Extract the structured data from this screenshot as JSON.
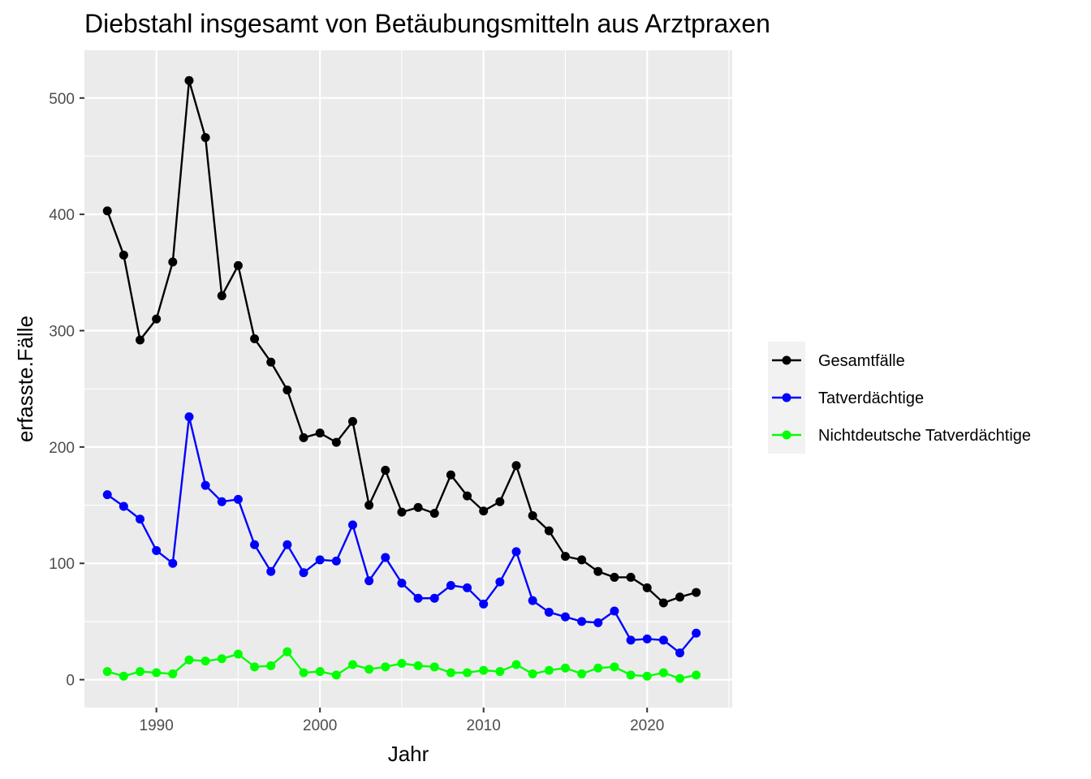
{
  "chart_data": {
    "type": "line",
    "title": "Diebstahl insgesamt von Betäubungsmitteln aus Arztpraxen",
    "xlabel": "Jahr",
    "ylabel": "erfasste.Fälle",
    "xlim": [
      1985.6,
      2025.2
    ],
    "ylim": [
      -24,
      541
    ],
    "x_ticks": [
      1990,
      2000,
      2010,
      2020
    ],
    "x_tick_labels": [
      "1990",
      "2000",
      "2010",
      "2020"
    ],
    "y_ticks": [
      0,
      100,
      200,
      300,
      400,
      500
    ],
    "y_tick_labels": [
      "0",
      "100",
      "200",
      "300",
      "400",
      "500"
    ],
    "grid": true,
    "legend_position": "right",
    "x": [
      1987,
      1988,
      1989,
      1990,
      1991,
      1992,
      1993,
      1994,
      1995,
      1996,
      1997,
      1998,
      1999,
      2000,
      2001,
      2002,
      2003,
      2004,
      2005,
      2006,
      2007,
      2008,
      2009,
      2010,
      2011,
      2012,
      2013,
      2014,
      2015,
      2016,
      2017,
      2018,
      2019,
      2020,
      2021,
      2022,
      2023
    ],
    "series": [
      {
        "name": "Gesamtfälle",
        "color": "#000000",
        "values": [
          403,
          365,
          292,
          310,
          359,
          515,
          466,
          330,
          356,
          293,
          273,
          249,
          208,
          212,
          204,
          222,
          150,
          180,
          144,
          148,
          143,
          176,
          158,
          145,
          153,
          184,
          141,
          128,
          106,
          103,
          93,
          88,
          88,
          79,
          66,
          71,
          75
        ]
      },
      {
        "name": "Tatverdächtige",
        "color": "#0000ff",
        "values": [
          159,
          149,
          138,
          111,
          100,
          226,
          167,
          153,
          155,
          116,
          93,
          116,
          92,
          103,
          102,
          133,
          85,
          105,
          83,
          70,
          70,
          81,
          79,
          65,
          84,
          110,
          68,
          58,
          54,
          50,
          49,
          59,
          34,
          35,
          34,
          23,
          40
        ]
      },
      {
        "name": "Nichtdeutsche Tatverdächtige",
        "color": "#00ff00",
        "values": [
          7,
          3,
          7,
          6,
          5,
          17,
          16,
          18,
          22,
          11,
          12,
          24,
          6,
          7,
          4,
          13,
          9,
          11,
          14,
          12,
          11,
          6,
          6,
          8,
          7,
          13,
          5,
          8,
          10,
          5,
          10,
          11,
          4,
          3,
          6,
          1,
          4
        ]
      }
    ]
  }
}
